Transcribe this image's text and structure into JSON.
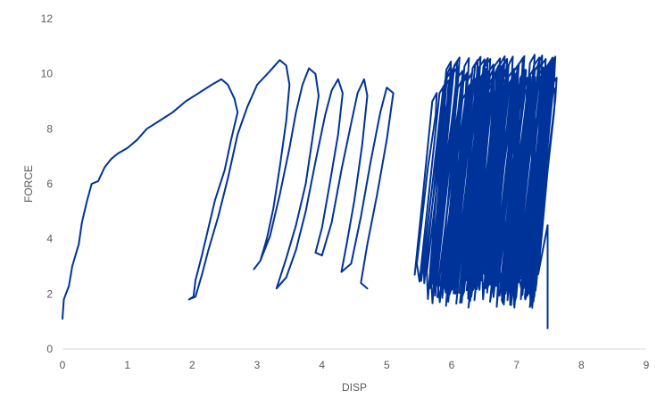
{
  "chart_data": {
    "type": "line",
    "title": "",
    "xlabel": "DISP",
    "ylabel": "FORCE",
    "xlim": [
      0,
      9
    ],
    "ylim": [
      0,
      12
    ],
    "xticks": [
      0,
      1,
      2,
      3,
      4,
      5,
      6,
      7,
      8,
      9
    ],
    "yticks": [
      0,
      2,
      4,
      6,
      8,
      10,
      12
    ],
    "grid": false,
    "series_color": "#003399",
    "series": [
      {
        "points": [
          [
            0.0,
            1.1
          ],
          [
            0.02,
            1.8
          ],
          [
            0.1,
            2.3
          ],
          [
            0.15,
            3.0
          ],
          [
            0.25,
            3.8
          ],
          [
            0.3,
            4.6
          ],
          [
            0.38,
            5.4
          ],
          [
            0.45,
            6.0
          ],
          [
            0.55,
            6.1
          ],
          [
            0.65,
            6.6
          ],
          [
            0.75,
            6.9
          ],
          [
            0.85,
            7.1
          ],
          [
            1.0,
            7.3
          ],
          [
            1.15,
            7.6
          ],
          [
            1.3,
            8.0
          ],
          [
            1.5,
            8.3
          ],
          [
            1.7,
            8.6
          ],
          [
            1.9,
            9.0
          ],
          [
            2.1,
            9.3
          ],
          [
            2.3,
            9.6
          ],
          [
            2.45,
            9.8
          ],
          [
            2.55,
            9.6
          ],
          [
            2.65,
            9.1
          ],
          [
            2.7,
            8.6
          ],
          [
            2.6,
            7.6
          ],
          [
            2.5,
            6.5
          ],
          [
            2.35,
            5.4
          ],
          [
            2.25,
            4.4
          ],
          [
            2.15,
            3.4
          ],
          [
            2.05,
            2.5
          ],
          [
            2.02,
            1.9
          ],
          [
            1.95,
            1.8
          ],
          [
            2.05,
            1.9
          ],
          [
            2.15,
            2.7
          ],
          [
            2.25,
            3.6
          ],
          [
            2.4,
            4.8
          ],
          [
            2.55,
            6.2
          ],
          [
            2.7,
            7.8
          ],
          [
            2.85,
            8.8
          ],
          [
            3.0,
            9.6
          ],
          [
            3.2,
            10.1
          ],
          [
            3.35,
            10.5
          ],
          [
            3.45,
            10.3
          ],
          [
            3.5,
            9.6
          ],
          [
            3.45,
            8.3
          ],
          [
            3.35,
            6.6
          ],
          [
            3.25,
            5.1
          ],
          [
            3.15,
            4.0
          ],
          [
            3.05,
            3.2
          ],
          [
            2.95,
            2.9
          ],
          [
            3.05,
            3.2
          ],
          [
            3.2,
            4.1
          ],
          [
            3.35,
            5.6
          ],
          [
            3.5,
            7.3
          ],
          [
            3.6,
            8.6
          ],
          [
            3.7,
            9.6
          ],
          [
            3.8,
            10.2
          ],
          [
            3.9,
            10.0
          ],
          [
            3.95,
            9.2
          ],
          [
            3.85,
            7.6
          ],
          [
            3.75,
            6.0
          ],
          [
            3.6,
            4.5
          ],
          [
            3.45,
            3.3
          ],
          [
            3.3,
            2.2
          ],
          [
            3.45,
            2.6
          ],
          [
            3.6,
            3.6
          ],
          [
            3.75,
            5.0
          ],
          [
            3.9,
            6.8
          ],
          [
            4.05,
            8.5
          ],
          [
            4.15,
            9.4
          ],
          [
            4.25,
            9.8
          ],
          [
            4.32,
            9.3
          ],
          [
            4.25,
            7.8
          ],
          [
            4.12,
            6.0
          ],
          [
            4.0,
            4.4
          ],
          [
            3.9,
            3.5
          ],
          [
            4.0,
            3.4
          ],
          [
            4.15,
            4.6
          ],
          [
            4.3,
            6.5
          ],
          [
            4.45,
            8.2
          ],
          [
            4.55,
            9.3
          ],
          [
            4.65,
            9.8
          ],
          [
            4.7,
            9.2
          ],
          [
            4.62,
            7.4
          ],
          [
            4.5,
            5.4
          ],
          [
            4.38,
            3.8
          ],
          [
            4.3,
            2.8
          ],
          [
            4.45,
            3.1
          ],
          [
            4.6,
            4.8
          ],
          [
            4.75,
            6.8
          ],
          [
            4.9,
            8.6
          ],
          [
            5.0,
            9.5
          ],
          [
            5.1,
            9.3
          ],
          [
            5.0,
            7.6
          ],
          [
            4.85,
            5.6
          ],
          [
            4.7,
            3.8
          ],
          [
            4.6,
            2.4
          ],
          [
            4.7,
            2.2
          ]
        ]
      },
      {
        "band_center_left": 5.6,
        "band_center_right": 7.45,
        "band_halfwidth": 0.18,
        "band_low": 1.5,
        "band_high": 10.7,
        "cycles": 110,
        "tail": [
          [
            7.48,
            4.5
          ],
          [
            7.48,
            0.75
          ]
        ]
      }
    ]
  }
}
